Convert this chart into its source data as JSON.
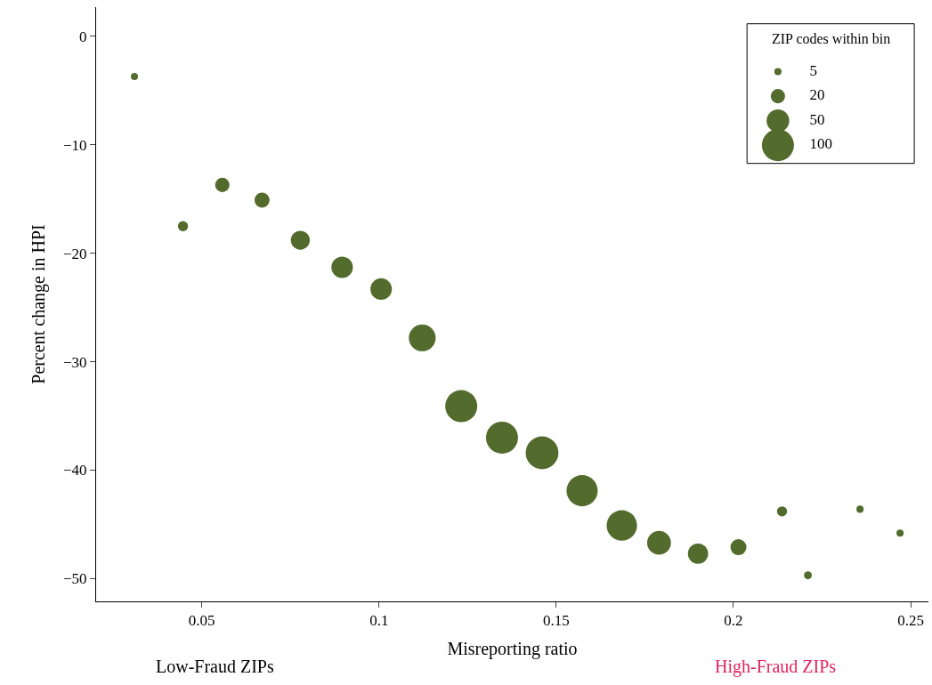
{
  "chart_data": {
    "type": "bubble",
    "xlabel": "Misreporting ratio",
    "ylabel": "Percent change in HPI",
    "legend_title": "ZIP codes within bin",
    "size_legend": [
      5,
      20,
      50,
      100
    ],
    "series": [
      {
        "color": "#536b2d",
        "x": [
          0.031,
          0.0447,
          0.0558,
          0.067,
          0.0778,
          0.0896,
          0.1006,
          0.1122,
          0.1232,
          0.1347,
          0.146,
          0.1573,
          0.1685,
          0.179,
          0.19,
          0.2014,
          0.2137,
          0.221,
          0.2357,
          0.247
        ],
        "values": [
          -3.7,
          -17.5,
          -13.7,
          -15.1,
          -18.8,
          -21.3,
          -23.3,
          -27.8,
          -34.1,
          -37.0,
          -38.4,
          -41.9,
          -45.1,
          -46.7,
          -47.7,
          -47.1,
          -43.8,
          -49.7,
          -43.6,
          -45.8
        ],
        "sizes": [
          5,
          10,
          20,
          22,
          35,
          45,
          45,
          70,
          100,
          100,
          105,
          95,
          90,
          55,
          40,
          25,
          10,
          6,
          5,
          5
        ]
      }
    ],
    "xlim": [
      0.0202,
      0.255
    ],
    "ylim": [
      -52.1,
      2.7
    ],
    "xticks": [
      0.05,
      0.1,
      0.15,
      0.2,
      0.25
    ],
    "yticks": [
      0,
      -10,
      -20,
      -30,
      -40,
      -50
    ],
    "annotations": [
      "Low-Fraud ZIPs",
      "High-Fraud ZIPs"
    ]
  }
}
